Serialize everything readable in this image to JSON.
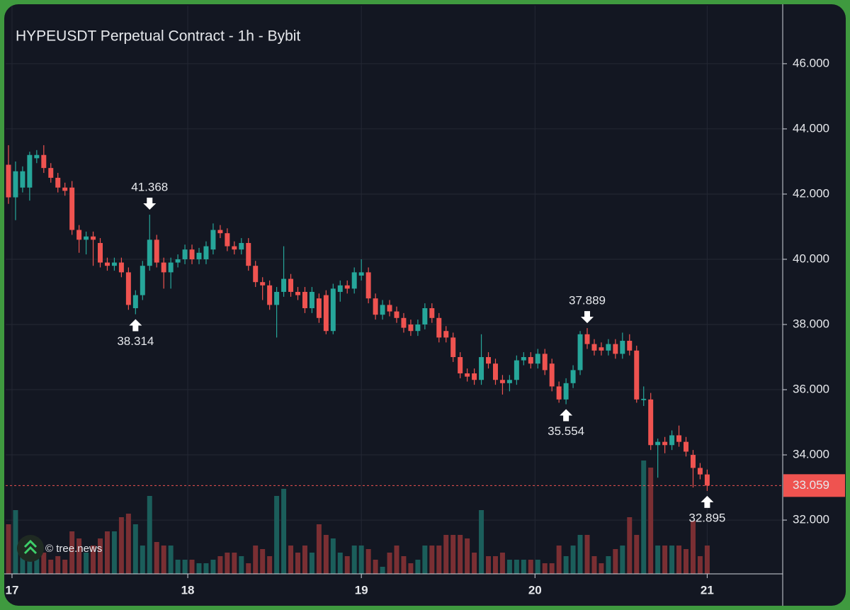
{
  "chart_data": {
    "type": "candlestick",
    "title": "HYPEUSDT Perpetual Contract - 1h - Bybit",
    "watermark": "© tree.news",
    "up_color": "#26a69a",
    "down_color": "#ef5350",
    "volume_up_color": "#1b5e5b",
    "volume_down_color": "#7a2f33",
    "open": [
      42.9,
      41.9,
      42.2,
      42.2,
      43.1,
      43.2,
      42.8,
      42.5,
      42.2,
      42.2,
      40.9,
      40.6,
      40.7,
      40.5,
      39.9,
      39.8,
      39.9,
      39.6,
      38.5,
      38.9,
      39.8,
      40.6,
      39.9,
      39.6,
      39.9,
      40.0,
      40.3,
      40.0,
      40.0,
      40.3,
      40.9,
      40.8,
      40.4,
      40.3,
      40.5,
      39.8,
      39.3,
      39.2,
      38.6,
      39.0,
      39.4,
      39.0,
      39.0,
      38.5,
      38.8,
      38.9,
      37.8,
      39.0,
      39.2,
      39.1,
      39.5,
      39.6,
      38.8,
      38.3,
      38.6,
      38.4,
      38.2,
      38.0,
      37.8,
      38.0,
      38.5,
      38.2,
      37.8,
      37.6,
      37.0,
      36.5,
      36.5,
      36.3,
      37.0,
      36.8,
      36.3,
      36.2,
      36.3,
      36.9,
      37.0,
      36.8,
      37.1,
      36.8,
      36.1,
      35.7,
      36.2,
      36.6,
      37.7,
      37.4,
      37.3,
      37.2,
      37.4,
      37.1,
      37.5,
      37.2,
      35.68,
      35.7,
      34.3,
      34.4,
      34.3,
      34.6,
      34.4,
      34.0,
      33.6,
      33.4
    ],
    "high": [
      43.5,
      43.0,
      42.85,
      43.3,
      43.35,
      43.5,
      42.95,
      42.65,
      42.35,
      42.4,
      41.05,
      40.85,
      40.85,
      40.65,
      40.05,
      40.05,
      40.05,
      39.75,
      39.05,
      39.95,
      41.368,
      40.75,
      40.05,
      40.05,
      40.15,
      40.45,
      40.45,
      40.35,
      40.55,
      41.1,
      41.05,
      40.95,
      40.55,
      40.65,
      40.65,
      39.95,
      39.45,
      39.35,
      39.15,
      40.4,
      39.55,
      39.15,
      39.15,
      39.15,
      38.95,
      39.05,
      39.25,
      39.35,
      39.35,
      39.75,
      40.0,
      39.75,
      38.95,
      38.75,
      38.75,
      38.55,
      38.35,
      38.15,
      38.15,
      38.65,
      38.65,
      38.35,
      37.95,
      37.75,
      37.15,
      36.65,
      36.65,
      37.7,
      37.15,
      36.95,
      36.45,
      36.45,
      37.05,
      37.15,
      37.15,
      37.25,
      37.25,
      36.95,
      36.25,
      36.35,
      36.75,
      37.8,
      37.889,
      37.55,
      37.45,
      37.55,
      37.55,
      37.75,
      37.7,
      37.35,
      36.1,
      35.9,
      34.5,
      34.55,
      34.75,
      34.9,
      34.55,
      34.15,
      33.75,
      33.55
    ],
    "low": [
      41.7,
      41.2,
      42.05,
      41.8,
      42.95,
      42.65,
      42.35,
      42.05,
      41.95,
      40.75,
      40.2,
      40.15,
      39.8,
      39.75,
      39.65,
      39.65,
      39.45,
      38.45,
      38.314,
      38.75,
      39.65,
      39.75,
      39.1,
      39.1,
      39.75,
      39.85,
      39.85,
      39.85,
      39.85,
      40.15,
      40.65,
      40.25,
      40.15,
      40.15,
      39.65,
      39.15,
      38.75,
      38.45,
      37.6,
      38.85,
      38.85,
      38.75,
      38.35,
      38.35,
      38.05,
      37.7,
      37.7,
      38.7,
      38.95,
      38.95,
      39.35,
      38.65,
      38.15,
      38.15,
      38.25,
      38.05,
      37.75,
      37.65,
      37.65,
      37.85,
      38.05,
      37.45,
      37.45,
      36.85,
      36.35,
      36.25,
      36.15,
      36.15,
      36.65,
      36.15,
      35.85,
      35.95,
      36.15,
      36.75,
      36.65,
      36.65,
      36.45,
      35.95,
      35.6,
      35.554,
      36.05,
      36.45,
      37.25,
      37.05,
      37.05,
      37.05,
      36.95,
      36.95,
      37.05,
      35.6,
      35.5,
      34.15,
      33.3,
      34.05,
      34.15,
      34.25,
      33.95,
      33.0,
      33.25,
      32.895
    ],
    "close": [
      41.9,
      42.7,
      42.7,
      43.2,
      43.2,
      42.8,
      42.5,
      42.2,
      42.1,
      40.9,
      40.6,
      40.7,
      40.6,
      39.9,
      39.8,
      39.9,
      39.6,
      38.6,
      38.9,
      39.8,
      40.6,
      39.9,
      39.6,
      39.9,
      40.0,
      40.3,
      40.0,
      40.2,
      40.4,
      40.9,
      40.8,
      40.4,
      40.3,
      40.5,
      39.8,
      39.3,
      39.2,
      38.6,
      39.0,
      39.4,
      39.0,
      38.9,
      38.5,
      39.0,
      38.2,
      37.8,
      39.1,
      39.2,
      39.1,
      39.6,
      39.6,
      38.8,
      38.3,
      38.6,
      38.4,
      38.2,
      37.9,
      37.8,
      38.0,
      38.5,
      38.2,
      37.6,
      37.6,
      37.0,
      36.5,
      36.4,
      36.3,
      37.0,
      36.8,
      36.3,
      36.2,
      36.3,
      36.9,
      37.0,
      36.8,
      37.1,
      36.6,
      36.1,
      35.7,
      36.2,
      36.6,
      37.7,
      37.4,
      37.2,
      37.2,
      37.4,
      37.1,
      37.5,
      37.2,
      35.7,
      35.72,
      34.3,
      34.4,
      34.3,
      34.6,
      34.4,
      34.1,
      33.6,
      33.4,
      33.059
    ],
    "volume": [
      70,
      90,
      30,
      30,
      40,
      30,
      20,
      25,
      20,
      60,
      50,
      30,
      40,
      50,
      60,
      60,
      80,
      85,
      70,
      40,
      110,
      45,
      40,
      40,
      20,
      20,
      20,
      15,
      15,
      20,
      25,
      30,
      30,
      25,
      15,
      40,
      35,
      25,
      110,
      120,
      40,
      30,
      40,
      30,
      70,
      55,
      50,
      30,
      25,
      40,
      40,
      35,
      20,
      10,
      30,
      40,
      25,
      15,
      20,
      40,
      40,
      40,
      55,
      55,
      55,
      50,
      30,
      90,
      25,
      25,
      30,
      20,
      20,
      20,
      20,
      20,
      15,
      15,
      40,
      25,
      40,
      55,
      55,
      25,
      15,
      25,
      35,
      40,
      80,
      55,
      160,
      150,
      40,
      40,
      40,
      40,
      35,
      75,
      25,
      40
    ],
    "vlim": [
      0,
      200
    ],
    "xlim": [
      -0.4,
      109.7
    ],
    "xticks": [
      {
        "value": 0.5,
        "label": "17"
      },
      {
        "value": 25.4,
        "label": "18"
      },
      {
        "value": 50,
        "label": "19"
      },
      {
        "value": 74.6,
        "label": "20"
      },
      {
        "value": 99,
        "label": "21"
      }
    ],
    "ylim": [
      30.35,
      47.78
    ],
    "yticks": [
      {
        "value": 32,
        "label": "32.000"
      },
      {
        "value": 34,
        "label": "34.000"
      },
      {
        "value": 36,
        "label": "36.000"
      },
      {
        "value": 38,
        "label": "38.000"
      },
      {
        "value": 40,
        "label": "40.000"
      },
      {
        "value": 42,
        "label": "42.000"
      },
      {
        "value": 44,
        "label": "44.000"
      },
      {
        "value": 46,
        "label": "46.000"
      }
    ],
    "grid": true,
    "annotations": [
      {
        "candle": 20,
        "at": "high"
      },
      {
        "candle": 18,
        "at": "low"
      },
      {
        "candle": 82,
        "at": "high"
      },
      {
        "candle": 79,
        "at": "low"
      },
      {
        "candle": 99,
        "at": "low"
      }
    ],
    "last_price_candle": 99
  }
}
